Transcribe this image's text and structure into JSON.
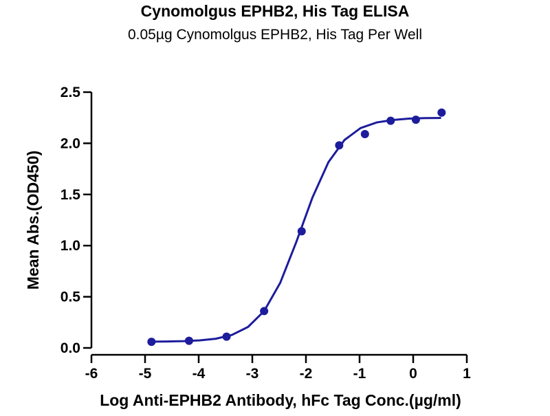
{
  "chart_data": {
    "type": "scatter",
    "title": "Cynomolgus EPHB2, His Tag ELISA",
    "subtitle": "0.05µg Cynomolgus EPHB2, His Tag Per Well",
    "x_label": "Log Anti-EPHB2 Antibody, hFc Tag Conc.(µg/ml)",
    "y_label": "Mean Abs.(OD450)",
    "color": "#1c1c9c",
    "x": [
      -4.88,
      -4.18,
      -3.48,
      -2.78,
      -2.08,
      -1.38,
      -0.9,
      -0.42,
      0.05,
      0.53
    ],
    "values": [
      0.06,
      0.07,
      0.11,
      0.36,
      1.14,
      1.98,
      2.09,
      2.22,
      2.23,
      2.3
    ],
    "fit": {
      "x": [
        -4.88,
        -4.58,
        -4.28,
        -3.98,
        -3.68,
        -3.38,
        -3.08,
        -2.78,
        -2.48,
        -2.18,
        -1.88,
        -1.58,
        -1.28,
        -0.98,
        -0.68,
        -0.38,
        -0.08,
        0.22,
        0.52
      ],
      "values": [
        0.061,
        0.063,
        0.066,
        0.074,
        0.09,
        0.127,
        0.205,
        0.36,
        0.636,
        1.035,
        1.468,
        1.816,
        2.033,
        2.149,
        2.204,
        2.228,
        2.241,
        2.246,
        2.248
      ]
    },
    "xlim": [
      -6,
      1
    ],
    "xticks": [
      -6,
      -5,
      -4,
      -3,
      -2,
      -1,
      0,
      1
    ],
    "ylim": [
      0,
      2.5
    ],
    "yticks": [
      {
        "value": 0,
        "label": "0.0"
      },
      0.5,
      {
        "value": 1,
        "label": "1.0"
      },
      1.5,
      {
        "value": 2,
        "label": "2.0"
      },
      2.5
    ]
  }
}
